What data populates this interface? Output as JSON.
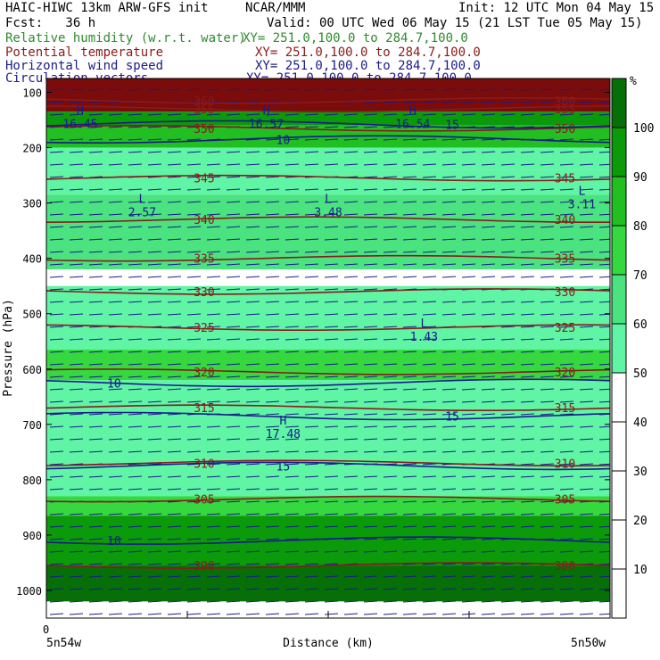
{
  "header": {
    "model": "HAIC-HIWC 13km ARW-GFS init",
    "center": "NCAR/MMM",
    "init": "Init: 12 UTC Mon 04 May 15",
    "fcst": "Fcst:   36 h",
    "valid": "Valid: 00 UTC Wed 06 May 15 (21 LST Tue 05 May 15)",
    "fields": [
      {
        "name": "Relative humidity (w.r.t. water)",
        "xy": "XY= 251.0,100.0 to 284.7,100.0",
        "color": "#2e8b2e"
      },
      {
        "name": "Potential temperature",
        "xy": "XY= 251.0,100.0 to 284.7,100.0",
        "color": "#8b1a1a"
      },
      {
        "name": "Horizontal wind speed",
        "xy": "XY= 251.0,100.0 to 284.7,100.0",
        "color": "#1a1a8b"
      },
      {
        "name": "Circulation vectors",
        "xy": "XY= 251.0,100.0 to 284.7,100.0",
        "color": "#1a1a8b"
      }
    ]
  },
  "chart_data": {
    "type": "heatmap",
    "xlabel": "Distance (km)",
    "ylabel": "Pressure (hPa)",
    "x_tick_start": "0",
    "x_left_label": "5n54w",
    "x_right_label": "5n50w",
    "yticks": [
      100,
      200,
      300,
      400,
      500,
      600,
      700,
      800,
      900,
      1000
    ],
    "ylim": [
      1050,
      75
    ],
    "colorbar": {
      "unit": "%",
      "ticks": [
        10,
        20,
        30,
        40,
        50,
        60,
        70,
        80,
        90,
        100
      ],
      "levels": [
        0,
        50,
        60,
        70,
        80,
        90,
        100,
        110
      ],
      "colors": [
        "#ffffff",
        "#5ff5a5",
        "#4be37f",
        "#35d93f",
        "#21bf21",
        "#0a9a0a",
        "#076f07",
        "#f58080"
      ]
    },
    "rh_bands": [
      {
        "bottom": 75,
        "top": 135,
        "color": "#7a0c0c"
      },
      {
        "bottom": 135,
        "top": 160,
        "color": "#0a9a0a"
      },
      {
        "bottom": 160,
        "top": 200,
        "color": "#21bf21"
      },
      {
        "bottom": 200,
        "top": 240,
        "color": "#5ff5a5"
      },
      {
        "bottom": 240,
        "top": 285,
        "color": "#5ff5a5"
      },
      {
        "bottom": 285,
        "top": 420,
        "color": "#4be37f"
      },
      {
        "bottom": 420,
        "top": 450,
        "color": "#ffffff"
      },
      {
        "bottom": 450,
        "top": 565,
        "color": "#5ff5a5"
      },
      {
        "bottom": 565,
        "top": 620,
        "color": "#35d93f"
      },
      {
        "bottom": 620,
        "top": 830,
        "color": "#5ff5a5"
      },
      {
        "bottom": 830,
        "top": 865,
        "color": "#35d93f"
      },
      {
        "bottom": 865,
        "top": 955,
        "color": "#0a9a0a"
      },
      {
        "bottom": 955,
        "top": 1020,
        "color": "#076f07"
      }
    ],
    "theta_contours": [
      {
        "value": "300",
        "p": 955
      },
      {
        "value": "305",
        "p": 835
      },
      {
        "value": "310",
        "p": 770
      },
      {
        "value": "315",
        "p": 670
      },
      {
        "value": "320",
        "p": 605
      },
      {
        "value": "325",
        "p": 525
      },
      {
        "value": "330",
        "p": 460
      },
      {
        "value": "335",
        "p": 400
      },
      {
        "value": "340",
        "p": 330
      },
      {
        "value": "345",
        "p": 255
      },
      {
        "value": "350",
        "p": 165
      },
      {
        "value": "355",
        "p": 130
      },
      {
        "value": "360",
        "p": 115
      }
    ],
    "wind_contours": [
      {
        "value": "10",
        "p": 910
      },
      {
        "value": "15",
        "p": 775
      },
      {
        "value": "15",
        "p": 685
      },
      {
        "value": "10",
        "p": 625
      },
      {
        "value": "10",
        "p": 185
      },
      {
        "value": "15",
        "p": 158
      }
    ],
    "extrema": [
      {
        "kind": "L",
        "value": "2.57",
        "x": 0.17,
        "p": 300
      },
      {
        "kind": "L",
        "value": "3.48",
        "x": 0.5,
        "p": 300
      },
      {
        "kind": "L",
        "value": "3.11",
        "x": 0.95,
        "p": 285
      },
      {
        "kind": "L",
        "value": "1.43",
        "x": 0.67,
        "p": 525
      },
      {
        "kind": "H",
        "value": "17.48",
        "x": 0.42,
        "p": 700
      },
      {
        "kind": "H",
        "value": "16.45",
        "x": 0.06,
        "p": 140
      },
      {
        "kind": "H",
        "value": "16.57",
        "x": 0.39,
        "p": 140
      },
      {
        "kind": "H",
        "value": "16.54",
        "x": 0.65,
        "p": 140
      }
    ]
  }
}
